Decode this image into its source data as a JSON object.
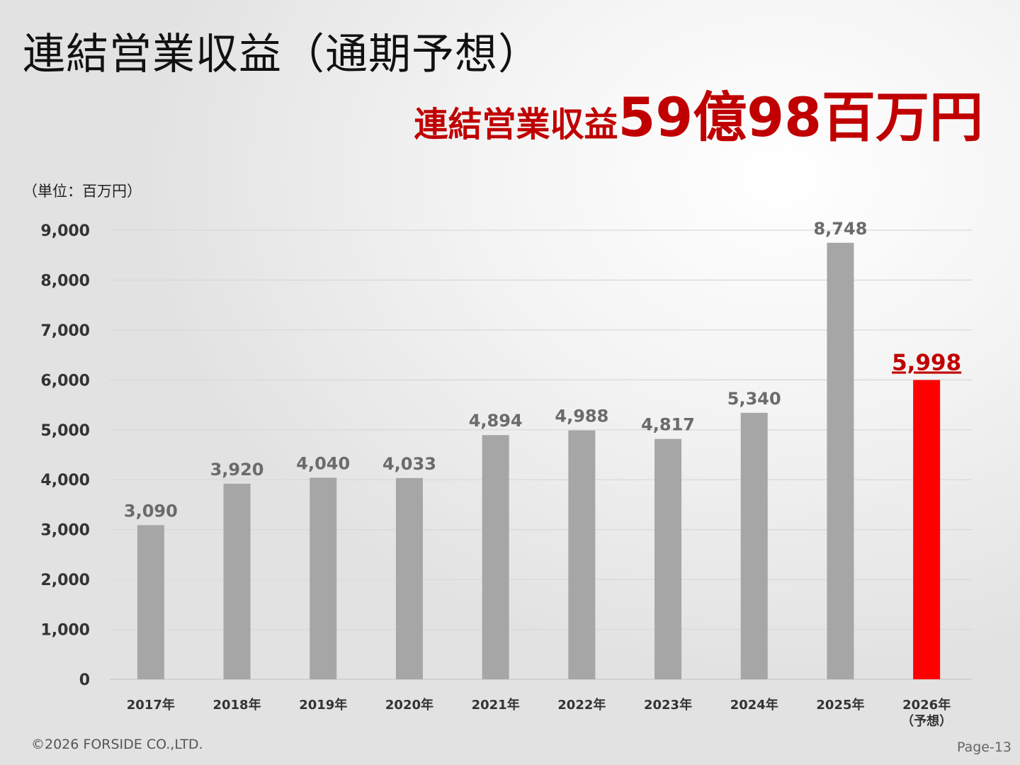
{
  "title": "連結営業収益（通期予想）",
  "headline": {
    "prefix": "連結営業収益",
    "amount": "59億98百万円"
  },
  "footer": "©2026 FORSIDE CO.,LTD.",
  "page": "Page-13",
  "chart_data": {
    "type": "bar",
    "unit_label": "（単位：百万円）",
    "categories": [
      "2017年",
      "2018年",
      "2019年",
      "2020年",
      "2021年",
      "2022年",
      "2023年",
      "2024年",
      "2025年",
      "2026年"
    ],
    "category_sublabels": [
      "",
      "",
      "",
      "",
      "",
      "",
      "",
      "",
      "",
      "（予想）"
    ],
    "values": [
      3090,
      3920,
      4040,
      4033,
      4894,
      4988,
      4817,
      5340,
      8748,
      5998
    ],
    "data_labels": [
      "3,090",
      "3,920",
      "4,040",
      "4,033",
      "4,894",
      "4,988",
      "4,817",
      "5,340",
      "8,748",
      "5,998"
    ],
    "ylim": [
      0,
      9000
    ],
    "yticks": [
      0,
      1000,
      2000,
      3000,
      4000,
      5000,
      6000,
      7000,
      8000,
      9000
    ],
    "ytick_labels": [
      "0",
      "1,000",
      "2,000",
      "3,000",
      "4,000",
      "5,000",
      "6,000",
      "7,000",
      "8,000",
      "9,000"
    ],
    "grid": true,
    "colors": {
      "bar": "#a6a6a6",
      "highlight_bar": "#ff0000",
      "label": "#6b6b6b",
      "highlight_label": "#c00000"
    },
    "highlight_index": 9
  }
}
